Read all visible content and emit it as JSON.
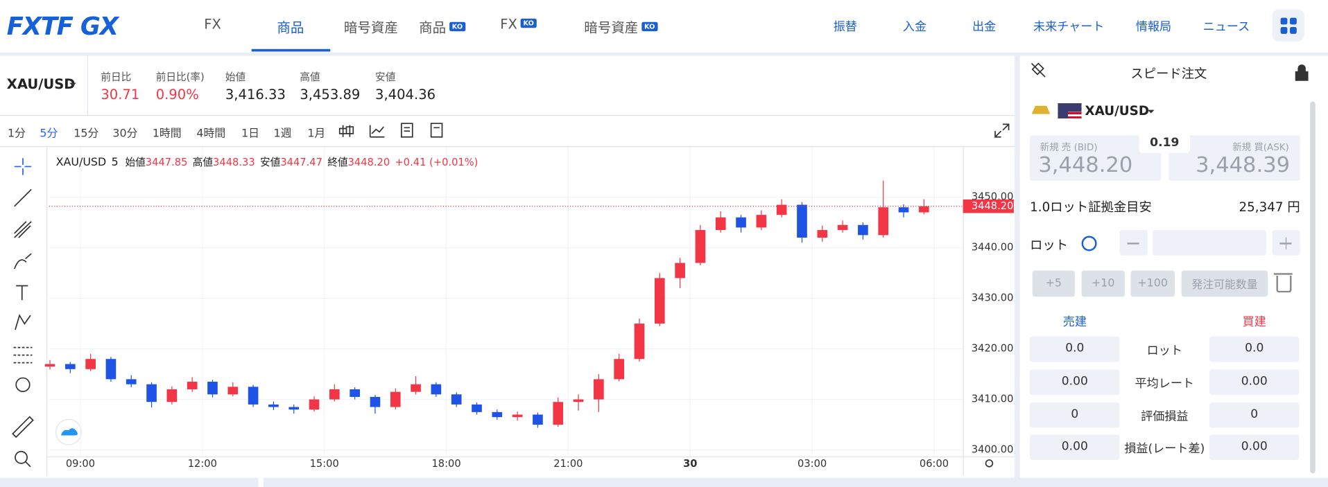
{
  "nav": {
    "logo": "FXTF GX",
    "tabs": [
      {
        "label": "FX"
      },
      {
        "label": "商品"
      },
      {
        "label": "暗号資産"
      },
      {
        "label": "商品",
        "badge": "KO"
      },
      {
        "label": "FX",
        "badge": "KO"
      },
      {
        "label": "暗号資産",
        "badge": "KO"
      }
    ],
    "active": 1,
    "links": [
      "振替",
      "入金",
      "出金",
      "未来チャート",
      "情報局",
      "ニュース"
    ]
  },
  "quote": {
    "symbol": "XAU/USD",
    "fields": [
      {
        "label": "前日比",
        "value": "30.71"
      },
      {
        "label": "前日比(率)",
        "value": "0.90%"
      },
      {
        "label": "始値",
        "value": "3,416.33"
      },
      {
        "label": "高値",
        "value": "3,453.89"
      },
      {
        "label": "安値",
        "value": "3,404.36"
      }
    ]
  },
  "toolbar": {
    "intervals": [
      "1分",
      "5分",
      "15分",
      "30分",
      "1時間",
      "4時間",
      "1日",
      "1週",
      "1月"
    ],
    "active": 1
  },
  "chart_data": {
    "type": "candlestick",
    "legend": {
      "symbol": "XAU/USD",
      "interval": "5",
      "items": [
        {
          "label": "始値",
          "value": "3447.85"
        },
        {
          "label": "高値",
          "value": "3448.33"
        },
        {
          "label": "安値",
          "value": "3447.47"
        },
        {
          "label": "終値",
          "value": "3448.20"
        }
      ],
      "change": "+0.41 (+0.01%)"
    },
    "up_color": "#f23645",
    "down_color": "#1e53e5",
    "candles": [
      {
        "t": -0.75,
        "o": 3416.5,
        "h": 3417.8,
        "l": 3415.9,
        "c": 3417
      },
      {
        "t": -0.25,
        "o": 3417,
        "h": 3417.4,
        "l": 3415.2,
        "c": 3416
      },
      {
        "t": 0.25,
        "o": 3416,
        "h": 3419,
        "l": 3415.6,
        "c": 3418
      },
      {
        "t": 0.75,
        "o": 3418,
        "h": 3418.4,
        "l": 3413.5,
        "c": 3414
      },
      {
        "t": 1.25,
        "o": 3414,
        "h": 3414.8,
        "l": 3412.4,
        "c": 3413
      },
      {
        "t": 1.75,
        "o": 3413,
        "h": 3413.4,
        "l": 3408.4,
        "c": 3409.5
      },
      {
        "t": 2.25,
        "o": 3409.5,
        "h": 3412.6,
        "l": 3409,
        "c": 3412
      },
      {
        "t": 2.75,
        "o": 3412,
        "h": 3414.4,
        "l": 3411.5,
        "c": 3413.5
      },
      {
        "t": 3.25,
        "o": 3413.5,
        "h": 3413.9,
        "l": 3410.4,
        "c": 3411
      },
      {
        "t": 3.75,
        "o": 3411,
        "h": 3413.4,
        "l": 3410.6,
        "c": 3412.5
      },
      {
        "t": 4.25,
        "o": 3412.5,
        "h": 3412.9,
        "l": 3408.5,
        "c": 3409
      },
      {
        "t": 4.75,
        "o": 3409,
        "h": 3409.6,
        "l": 3407.9,
        "c": 3408.5
      },
      {
        "t": 5.25,
        "o": 3408.5,
        "h": 3409,
        "l": 3407.2,
        "c": 3408
      },
      {
        "t": 5.75,
        "o": 3408,
        "h": 3410.6,
        "l": 3407.6,
        "c": 3410
      },
      {
        "t": 6.25,
        "o": 3410,
        "h": 3413,
        "l": 3409.6,
        "c": 3412
      },
      {
        "t": 6.75,
        "o": 3412,
        "h": 3412.4,
        "l": 3410,
        "c": 3410.5
      },
      {
        "t": 7.25,
        "o": 3410.5,
        "h": 3410.9,
        "l": 3407.2,
        "c": 3408.5
      },
      {
        "t": 7.75,
        "o": 3408.5,
        "h": 3412.2,
        "l": 3408,
        "c": 3411.5
      },
      {
        "t": 8.25,
        "o": 3411.5,
        "h": 3414.6,
        "l": 3411,
        "c": 3413
      },
      {
        "t": 8.75,
        "o": 3413,
        "h": 3413.4,
        "l": 3410.5,
        "c": 3411
      },
      {
        "t": 9.25,
        "o": 3411,
        "h": 3411.4,
        "l": 3408.5,
        "c": 3409
      },
      {
        "t": 9.75,
        "o": 3409,
        "h": 3409.4,
        "l": 3407,
        "c": 3407.5
      },
      {
        "t": 10.25,
        "o": 3407.5,
        "h": 3408,
        "l": 3406,
        "c": 3406.5
      },
      {
        "t": 10.75,
        "o": 3406.5,
        "h": 3407.6,
        "l": 3405.8,
        "c": 3407
      },
      {
        "t": 11.25,
        "o": 3407,
        "h": 3407.4,
        "l": 3404.4,
        "c": 3405
      },
      {
        "t": 11.75,
        "o": 3405,
        "h": 3410.4,
        "l": 3404.6,
        "c": 3409.5
      },
      {
        "t": 12.25,
        "o": 3409.5,
        "h": 3411,
        "l": 3407.8,
        "c": 3410
      },
      {
        "t": 12.75,
        "o": 3410,
        "h": 3415,
        "l": 3407.5,
        "c": 3414
      },
      {
        "t": 13.25,
        "o": 3414,
        "h": 3419,
        "l": 3413.6,
        "c": 3418
      },
      {
        "t": 13.75,
        "o": 3418,
        "h": 3426,
        "l": 3417.5,
        "c": 3425
      },
      {
        "t": 14.25,
        "o": 3425,
        "h": 3435,
        "l": 3424.5,
        "c": 3434
      },
      {
        "t": 14.75,
        "o": 3434,
        "h": 3438,
        "l": 3432,
        "c": 3437
      },
      {
        "t": 15.25,
        "o": 3437,
        "h": 3444.5,
        "l": 3436.5,
        "c": 3443.5
      },
      {
        "t": 15.75,
        "o": 3443.5,
        "h": 3447.2,
        "l": 3443,
        "c": 3446
      },
      {
        "t": 16.25,
        "o": 3446,
        "h": 3446.5,
        "l": 3443,
        "c": 3444
      },
      {
        "t": 16.75,
        "o": 3444,
        "h": 3447.4,
        "l": 3443.5,
        "c": 3446.5
      },
      {
        "t": 17.25,
        "o": 3446.5,
        "h": 3449.6,
        "l": 3446,
        "c": 3448.5
      },
      {
        "t": 17.75,
        "o": 3448.5,
        "h": 3449,
        "l": 3441,
        "c": 3442
      },
      {
        "t": 18.25,
        "o": 3442,
        "h": 3444.4,
        "l": 3441.2,
        "c": 3443.5
      },
      {
        "t": 18.75,
        "o": 3443.5,
        "h": 3445.4,
        "l": 3443,
        "c": 3444.5
      },
      {
        "t": 19.25,
        "o": 3444.5,
        "h": 3445,
        "l": 3441.6,
        "c": 3442.5
      },
      {
        "t": 19.75,
        "o": 3442.5,
        "h": 3453.3,
        "l": 3442,
        "c": 3448
      },
      {
        "t": 20.25,
        "o": 3448,
        "h": 3448.6,
        "l": 3446,
        "c": 3447
      },
      {
        "t": 20.75,
        "o": 3447,
        "h": 3449.6,
        "l": 3446.6,
        "c": 3448.2
      }
    ],
    "last_price": {
      "value": 3448.2,
      "label": "3448.20"
    },
    "xlim": [
      -0.77,
      21.71
    ],
    "xticks": [
      {
        "value": 0,
        "label": "09:00"
      },
      {
        "value": 3,
        "label": "12:00"
      },
      {
        "value": 6,
        "label": "15:00"
      },
      {
        "value": 9,
        "label": "18:00"
      },
      {
        "value": 12,
        "label": "21:00"
      },
      {
        "value": 15,
        "label": "30"
      },
      {
        "value": 18,
        "label": "03:00"
      },
      {
        "value": 21,
        "label": "06:00"
      }
    ],
    "ylim": [
      3398.7,
      3459.9
    ],
    "yticks": [
      {
        "value": 3400,
        "label": "3400.00"
      },
      {
        "value": 3410,
        "label": "3410.00"
      },
      {
        "value": 3420,
        "label": "3420.00"
      },
      {
        "value": 3430,
        "label": "3430.00"
      },
      {
        "value": 3440,
        "label": "3440.00"
      },
      {
        "value": 3450,
        "label": "3450.00"
      }
    ],
    "grid": true
  },
  "order_panel": {
    "title": "スピード注文",
    "symbol": "XAU/USD",
    "bid_label": "新規 売 (BID)",
    "bid": "3,448.20",
    "spread": "0.19",
    "ask_label": "新規 買(ASK)",
    "ask": "3,448.39",
    "margin_label": "1.0ロット証拠金目安",
    "margin": "25,347 円",
    "lot_label": "ロット",
    "quick": [
      "+5",
      "+10",
      "+100",
      "発注可能数量"
    ],
    "sell": "売建",
    "buy": "買建",
    "rows": [
      {
        "label": "ロット",
        "sell": "0.0",
        "buy": "0.0"
      },
      {
        "label": "平均レート",
        "sell": "0.00",
        "buy": "0.00"
      },
      {
        "label": "評価損益",
        "sell": "0",
        "buy": "0"
      },
      {
        "label": "損益(レート差)",
        "sell": "0.00",
        "buy": "0.00"
      }
    ]
  }
}
